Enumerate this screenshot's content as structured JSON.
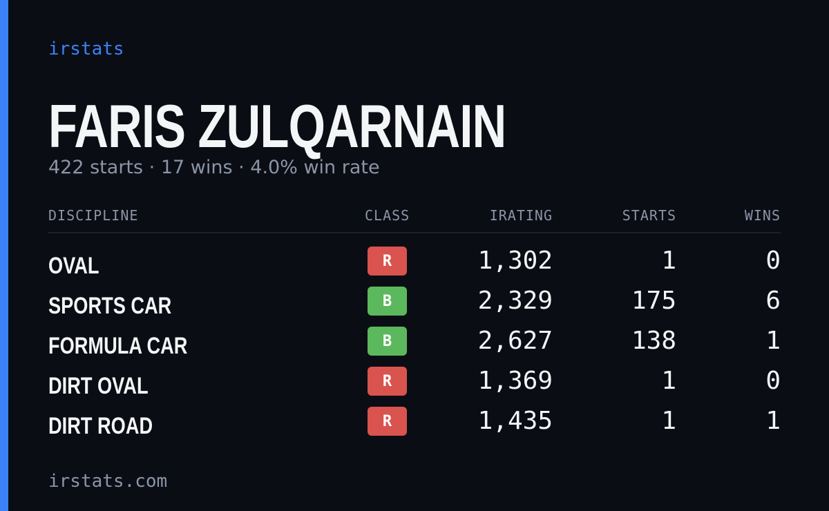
{
  "brand": "irstats",
  "driver": {
    "name": "FARIS ZULQARNAIN",
    "summary": "422 starts · 17 wins · 4.0% win rate"
  },
  "table": {
    "headers": [
      "DISCIPLINE",
      "CLASS",
      "IRATING",
      "STARTS",
      "WINS"
    ],
    "rows": [
      [
        "OVAL",
        "R",
        "1,302",
        "1",
        "0"
      ],
      [
        "SPORTS CAR",
        "B",
        "2,329",
        "175",
        "6"
      ],
      [
        "FORMULA CAR",
        "B",
        "2,627",
        "138",
        "1"
      ],
      [
        "DIRT OVAL",
        "R",
        "1,369",
        "1",
        "0"
      ],
      [
        "DIRT ROAD",
        "R",
        "1,435",
        "1",
        "1"
      ]
    ]
  },
  "footer": "irstats.com"
}
